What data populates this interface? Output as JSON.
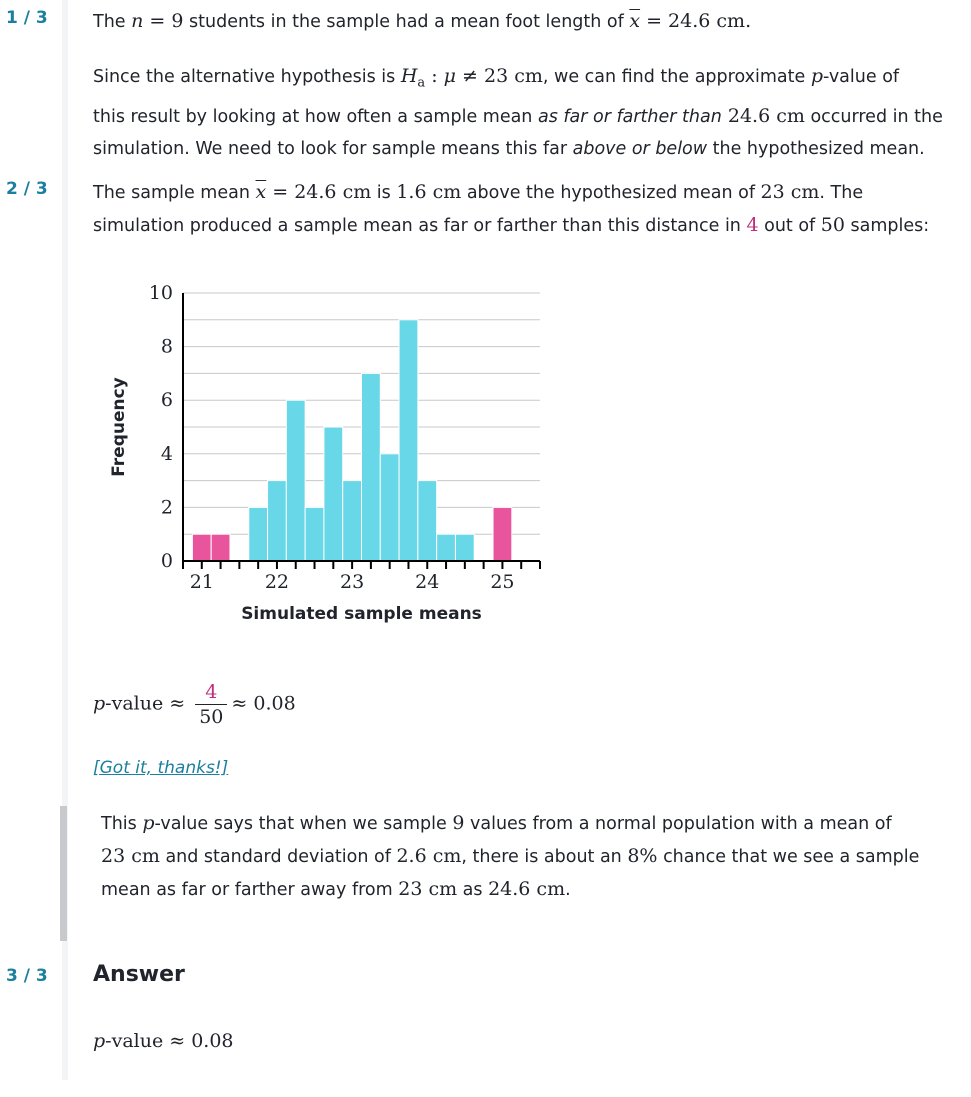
{
  "steps": [
    {
      "label": "1 / 3"
    },
    {
      "label": "2 / 3"
    },
    {
      "label": "3 / 3"
    }
  ],
  "step1": {
    "line1_a": "The ",
    "line1_n": "n",
    "line1_b": " = 9",
    "line1_c": " students in the sample had a mean foot length of ",
    "line1_xbar": "x",
    "line1_d": " = 24.6",
    "line1_e": " cm.",
    "p2_a": "Since the alternative hypothesis is ",
    "p2_H": "H",
    "p2_sub": "a",
    "p2_b": " : ",
    "p2_mu": "μ",
    "p2_c": " ≠ 23 cm",
    "p2_d": ", we can find the approximate ",
    "p2_p": "p",
    "p2_e": "-value of",
    "p2_f": "this result by looking at how often a sample mean ",
    "p2_g": "as far or farther than",
    "p2_h": " 24.6",
    "p2_i": " cm",
    "p2_j": " occurred in the",
    "p2_k": "simulation. We need to look for sample means this far ",
    "p2_l": "above or below",
    "p2_m": " the hypothesized mean."
  },
  "step2": {
    "a": "The sample mean ",
    "xbar": "x",
    "b": " = 24.6",
    "c": " cm",
    "d": " is ",
    "e": "1.6",
    "f": " cm",
    "g": " above the hypothesized mean of ",
    "h": "23 cm",
    "i": ". The",
    "j": "simulation produced a sample mean as far or farther than this distance in ",
    "k": "4",
    "l": " out of ",
    "mm": "50",
    "n": " samples:",
    "pvalue_p": "p",
    "pvalue_label": "-value ≈ ",
    "frac_num": "4",
    "frac_den": "50",
    "pvalue_result": "≈ 0.08"
  },
  "chart_data": {
    "type": "bar",
    "xlabel": "Simulated sample means",
    "ylabel": "Frequency",
    "ylim": [
      0,
      10
    ],
    "yticks": [
      "0",
      "2",
      "4",
      "6",
      "8",
      "10"
    ],
    "xticks": [
      "21",
      "22",
      "23",
      "24",
      "25"
    ],
    "bin_width": 0.25,
    "bins": [
      {
        "x": 21.0,
        "count": 1,
        "color": "#e8559c"
      },
      {
        "x": 21.25,
        "count": 1,
        "color": "#e8559c"
      },
      {
        "x": 21.5,
        "count": 0,
        "color": "#68d8e8"
      },
      {
        "x": 21.75,
        "count": 2,
        "color": "#68d8e8"
      },
      {
        "x": 22.0,
        "count": 3,
        "color": "#68d8e8"
      },
      {
        "x": 22.25,
        "count": 6,
        "color": "#68d8e8"
      },
      {
        "x": 22.5,
        "count": 2,
        "color": "#68d8e8"
      },
      {
        "x": 22.75,
        "count": 5,
        "color": "#68d8e8"
      },
      {
        "x": 23.0,
        "count": 3,
        "color": "#68d8e8"
      },
      {
        "x": 23.25,
        "count": 7,
        "color": "#68d8e8"
      },
      {
        "x": 23.5,
        "count": 4,
        "color": "#68d8e8"
      },
      {
        "x": 23.75,
        "count": 9,
        "color": "#68d8e8"
      },
      {
        "x": 24.0,
        "count": 3,
        "color": "#68d8e8"
      },
      {
        "x": 24.25,
        "count": 1,
        "color": "#68d8e8"
      },
      {
        "x": 24.5,
        "count": 1,
        "color": "#68d8e8"
      },
      {
        "x": 24.75,
        "count": 0,
        "color": "#68d8e8"
      },
      {
        "x": 25.0,
        "count": 2,
        "color": "#e8559c"
      }
    ],
    "grid": true
  },
  "hint": {
    "link": "[Got it, thanks!]",
    "a": "This ",
    "p": "p",
    "b": "-value says that when we sample ",
    "c": "9",
    "d": " values from a normal population with a mean of",
    "e": "23 cm",
    "f": " and standard deviation of ",
    "g": "2.6 cm",
    "h": ", there is about an ",
    "i": "8%",
    "j": " chance that we see a sample",
    "k": "mean as far or farther away from ",
    "l": "23 cm",
    "mm": " as ",
    "n": "24.6",
    "o": " cm",
    "q": "."
  },
  "answer": {
    "title": "Answer",
    "p": "p",
    "label": "-value ≈ 0.08"
  },
  "colors": {
    "accent": "#1b7fa0",
    "pink": "#c02d7a",
    "tail_bar": "#e8559c",
    "center_bar": "#68d8e8"
  }
}
